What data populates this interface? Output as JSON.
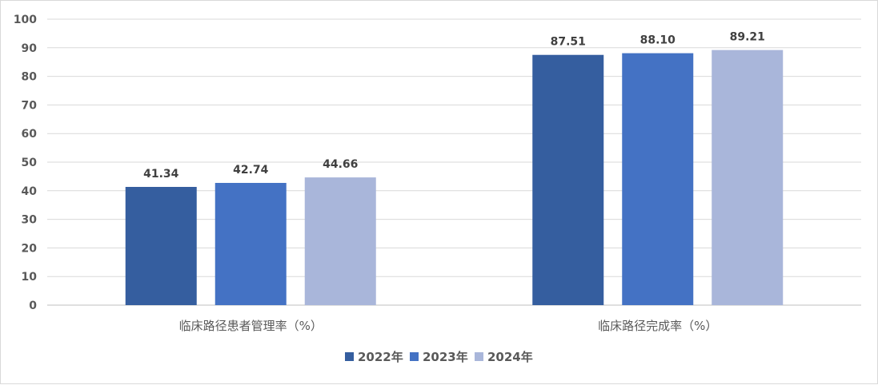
{
  "chart_data": {
    "type": "bar",
    "categories": [
      "临床路径患者管理率（%）",
      "临床路径完成率（%）"
    ],
    "series": [
      {
        "name": "2022年",
        "values": [
          41.34,
          87.51
        ],
        "color": "#355E9F"
      },
      {
        "name": "2023年",
        "values": [
          42.74,
          88.1
        ],
        "color": "#4472C4"
      },
      {
        "name": "2024年",
        "values": [
          44.66,
          89.21
        ],
        "color": "#A9B6DA"
      }
    ],
    "data_labels": [
      [
        "41.34",
        "87.51"
      ],
      [
        "42.74",
        "88.10"
      ],
      [
        "44.66",
        "89.21"
      ]
    ],
    "yticks": [
      "0",
      "10",
      "20",
      "30",
      "40",
      "50",
      "60",
      "70",
      "80",
      "90",
      "100"
    ],
    "ylim": [
      0,
      100
    ],
    "grid": true,
    "legend": "bottom",
    "title": "",
    "xlabel": "",
    "ylabel": ""
  }
}
